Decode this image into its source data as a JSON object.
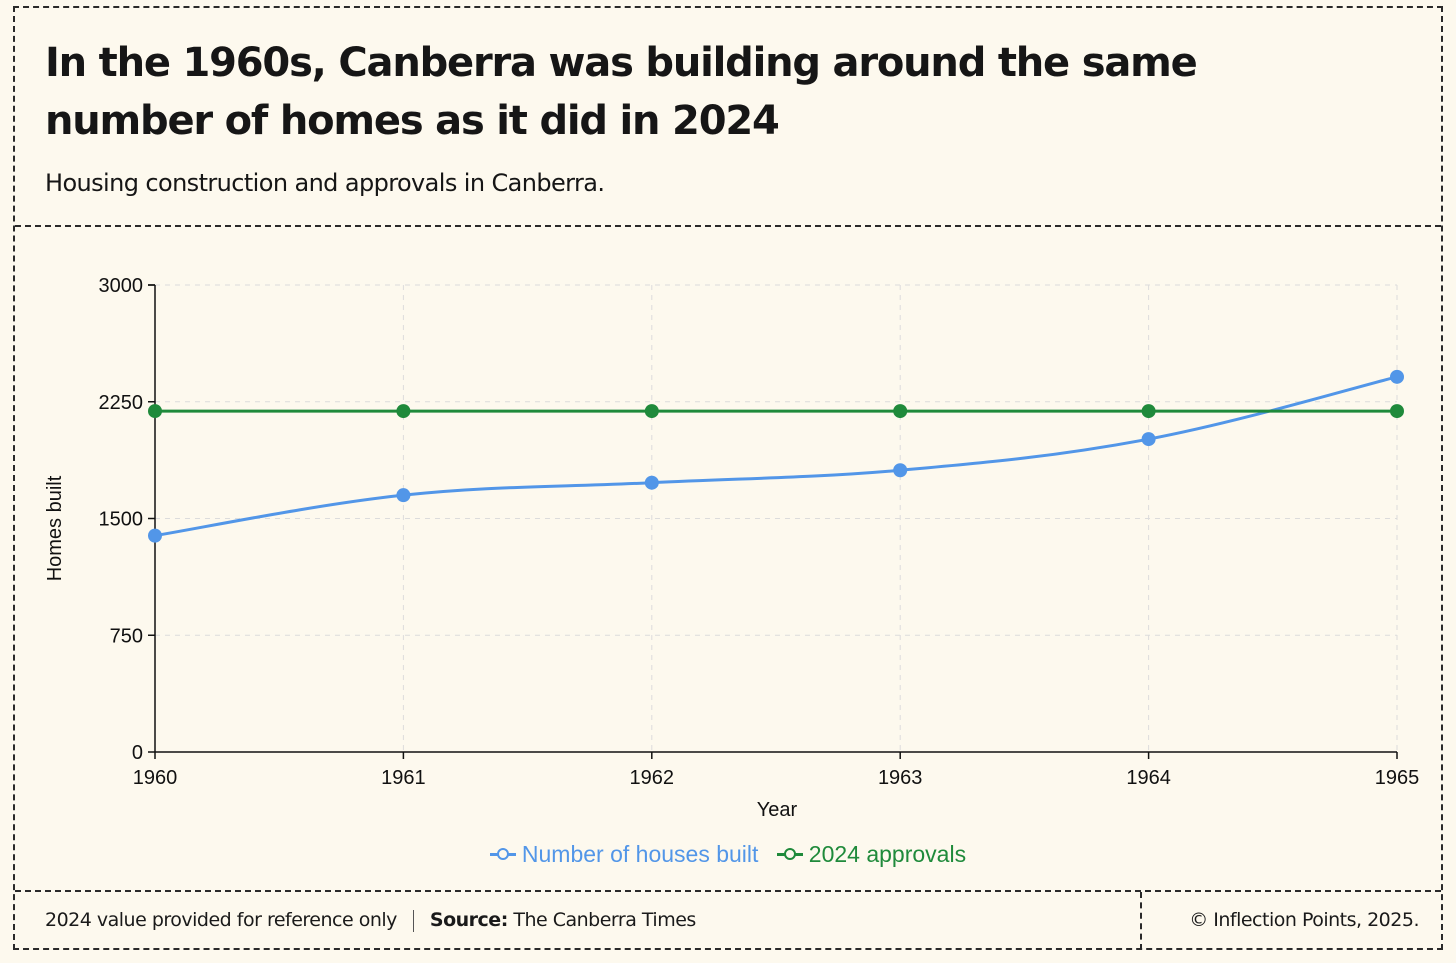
{
  "header": {
    "title": "In the 1960s, Canberra was building around the same number of homes as it did in 2024",
    "subtitle": "Housing construction and approvals in Canberra."
  },
  "chart_data": {
    "type": "line",
    "title": "In the 1960s, Canberra was building around the same number of homes as it did in 2024",
    "xlabel": "Year",
    "ylabel": "Homes built",
    "x": [
      "1960",
      "1961",
      "1962",
      "1963",
      "1964",
      "1965"
    ],
    "ylim": [
      0,
      3000
    ],
    "yticks": [
      0,
      750,
      1500,
      2250,
      3000
    ],
    "grid": true,
    "legend_position": "bottom-center",
    "series": [
      {
        "name": "Number of houses built",
        "color": "#5296e8",
        "values": [
          1390,
          1650,
          1730,
          1810,
          2010,
          2410
        ]
      },
      {
        "name": "2024 approvals",
        "color": "#1f8a3b",
        "values": [
          2190,
          2190,
          2190,
          2190,
          2190,
          2190
        ]
      }
    ]
  },
  "footer": {
    "note": "2024 value provided for reference only",
    "source_label": "Source:",
    "source_value": "The Canberra Times",
    "copyright": "© Inflection Points, 2025."
  }
}
